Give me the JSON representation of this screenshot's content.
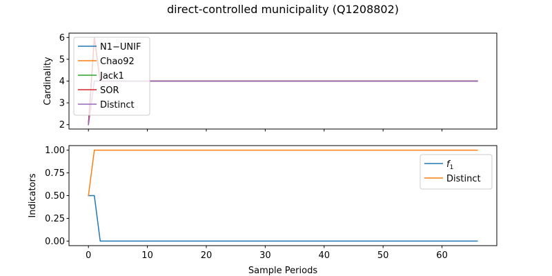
{
  "chart_data": {
    "title": "direct-controlled municipality (Q1208802)",
    "xlabel": "Sample Periods",
    "xlim": [
      -3.3,
      69.3
    ],
    "xticks": [
      0,
      10,
      20,
      30,
      40,
      50,
      60
    ],
    "panels": [
      {
        "type": "line",
        "ylabel": "Cardinality",
        "ylim": [
          1.8,
          6.2
        ],
        "yticks": [
          2,
          3,
          4,
          5,
          6
        ],
        "show_xticklabels": false,
        "legend": "upper-left",
        "series": [
          {
            "name": "N1−UNIF",
            "color": "#1f77b4",
            "x": [
              0,
              1,
              2,
              66
            ],
            "y": [
              2,
              6,
              4,
              4
            ]
          },
          {
            "name": "Chao92",
            "color": "#ff7f0e",
            "x": [
              0,
              1,
              2,
              66
            ],
            "y": [
              2,
              6,
              4,
              4
            ]
          },
          {
            "name": "Jack1",
            "color": "#2ca02c",
            "x": [
              0,
              1,
              2,
              66
            ],
            "y": [
              2,
              6,
              4,
              4
            ]
          },
          {
            "name": "SOR",
            "color": "#d62728",
            "x": [
              0,
              1,
              2,
              66
            ],
            "y": [
              2,
              6,
              4,
              4
            ]
          },
          {
            "name": "Distinct",
            "color": "#9467bd",
            "x": [
              0,
              1,
              2,
              66
            ],
            "y": [
              2,
              4,
              4,
              4
            ]
          }
        ]
      },
      {
        "type": "line",
        "ylabel": "Indicators",
        "ylim": [
          -0.05,
          1.05
        ],
        "yticks": [
          0.0,
          0.25,
          0.5,
          0.75,
          1.0
        ],
        "ytick_labels": [
          "0.00",
          "0.25",
          "0.50",
          "0.75",
          "1.00"
        ],
        "show_xticklabels": true,
        "legend": "upper-right",
        "series": [
          {
            "name": "f1",
            "label_main": "f",
            "label_sub": "1",
            "color": "#1f77b4",
            "x": [
              0,
              1,
              2,
              66
            ],
            "y": [
              0.5,
              0.5,
              0.0,
              0.0
            ]
          },
          {
            "name": "Distinct",
            "color": "#ff7f0e",
            "x": [
              0,
              1,
              66
            ],
            "y": [
              0.5,
              1.0,
              1.0
            ]
          }
        ]
      }
    ]
  }
}
